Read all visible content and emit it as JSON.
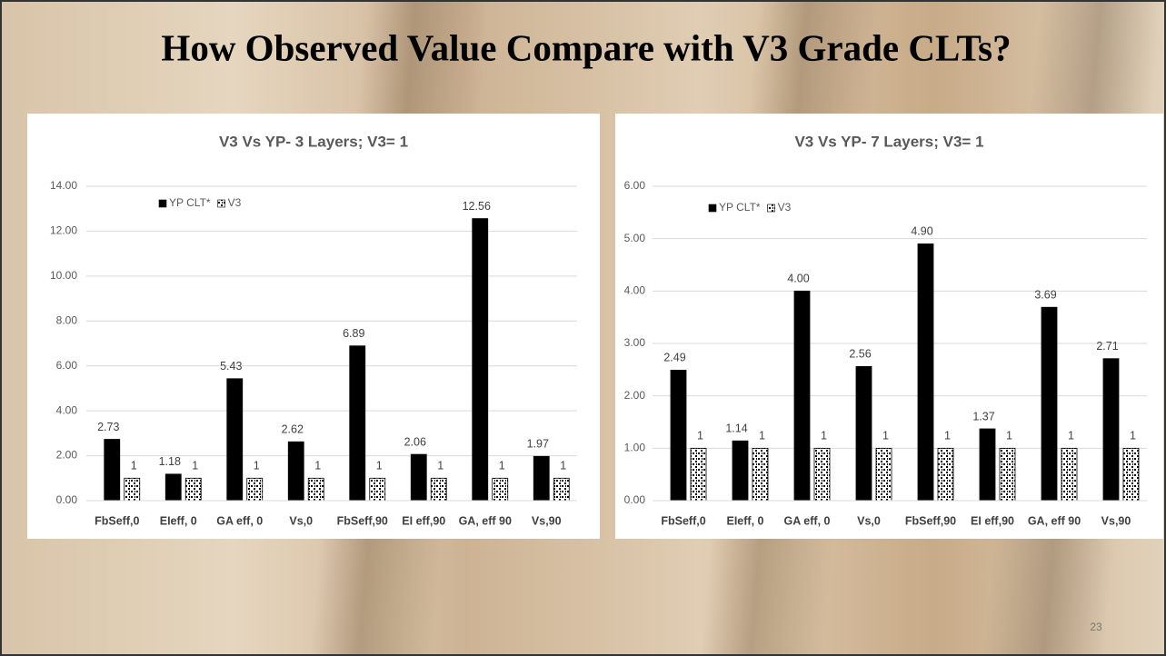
{
  "slide": {
    "title": "How Observed Value Compare with V3 Grade CLTs?",
    "page_number": "23"
  },
  "chart_data": [
    {
      "type": "bar",
      "title": "V3 Vs YP- 3 Layers; V3= 1",
      "categories": [
        "FbSeff,0",
        "EIeff, 0",
        "GA eff, 0",
        "Vs,0",
        "FbSeff,90",
        "EI eff,90",
        "GA, eff 90",
        "Vs,90"
      ],
      "series": [
        {
          "name": "YP CLT*",
          "color": "#000000",
          "values": [
            2.73,
            1.18,
            5.43,
            2.62,
            6.89,
            2.06,
            12.56,
            1.97
          ],
          "value_labels": [
            "2.73",
            "1.18",
            "5.43",
            "2.62",
            "6.89",
            "2.06",
            "12.56",
            "1.97"
          ]
        },
        {
          "name": "V3",
          "color": "pattern",
          "values": [
            1,
            1,
            1,
            1,
            1,
            1,
            1,
            1
          ]
        }
      ],
      "ylim": [
        0,
        14
      ],
      "yticks": [
        {
          "value": 0,
          "label": "0.00"
        },
        {
          "value": 2,
          "label": "2.00"
        },
        {
          "value": 4,
          "label": "4.00"
        },
        {
          "value": 6,
          "label": "6.00"
        },
        {
          "value": 8,
          "label": "8.00"
        },
        {
          "value": 10,
          "label": "10.00"
        },
        {
          "value": 12,
          "label": "12.00"
        },
        {
          "value": 14,
          "label": "14.00"
        }
      ],
      "grid": true,
      "legend": "top-left"
    },
    {
      "type": "bar",
      "title": "V3 Vs YP- 7 Layers; V3= 1",
      "categories": [
        "FbSeff,0",
        "EIeff, 0",
        "GA eff, 0",
        "Vs,0",
        "FbSeff,90",
        "EI eff,90",
        "GA, eff 90",
        "Vs,90"
      ],
      "series": [
        {
          "name": "YP CLT*",
          "color": "#000000",
          "values": [
            2.49,
            1.14,
            4.0,
            2.56,
            4.9,
            1.37,
            3.69,
            2.71
          ],
          "value_labels": [
            "2.49",
            "1.14",
            "4.00",
            "2.56",
            "4.90",
            "1.37",
            "3.69",
            "2.71"
          ]
        },
        {
          "name": "V3",
          "color": "pattern",
          "values": [
            1,
            1,
            1,
            1,
            1,
            1,
            1,
            1
          ]
        }
      ],
      "ylim": [
        0,
        6
      ],
      "yticks": [
        {
          "value": 0,
          "label": "0.00"
        },
        {
          "value": 1,
          "label": "1.00"
        },
        {
          "value": 2,
          "label": "2.00"
        },
        {
          "value": 3,
          "label": "3.00"
        },
        {
          "value": 4,
          "label": "4.00"
        },
        {
          "value": 5,
          "label": "5.00"
        },
        {
          "value": 6,
          "label": "6.00"
        }
      ],
      "grid": true,
      "legend": "top-left"
    }
  ]
}
